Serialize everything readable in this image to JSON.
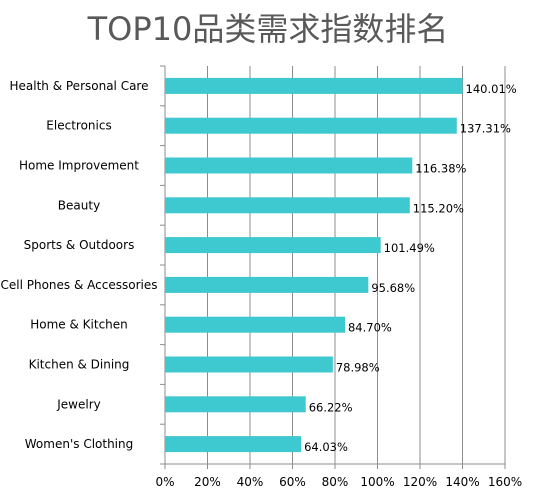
{
  "chart_data": {
    "type": "bar",
    "orientation": "horizontal",
    "title": "TOP10品类需求指数排名",
    "categories": [
      "Health & Personal Care",
      "Electronics",
      "Home Improvement",
      "Beauty",
      "Sports & Outdoors",
      "Cell Phones & Accessories",
      "Home & Kitchen",
      "Kitchen & Dining",
      "Jewelry",
      "Women's Clothing"
    ],
    "values": [
      140.01,
      137.31,
      116.38,
      115.2,
      101.49,
      95.68,
      84.7,
      78.98,
      66.22,
      64.03
    ],
    "data_labels": [
      "140.01%",
      "137.31%",
      "116.38%",
      "115.20%",
      "101.49%",
      "95.68%",
      "84.70%",
      "78.98%",
      "66.22%",
      "64.03%"
    ],
    "xlim": [
      0,
      160
    ],
    "x_ticks": [
      "0%",
      "20%",
      "40%",
      "60%",
      "80%",
      "100%",
      "120%",
      "140%",
      "160%"
    ],
    "xlabel": "",
    "ylabel": "",
    "grid": "vertical",
    "legend": "none",
    "bar_color": "#3ec8d0",
    "grid_color": "#8c8c8c"
  }
}
